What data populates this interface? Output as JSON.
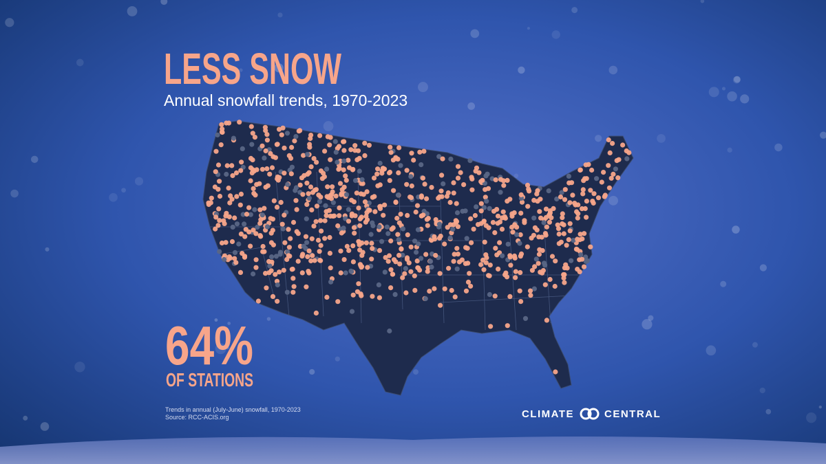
{
  "header": {
    "title": "LESS SNOW",
    "subtitle": "Annual snowfall trends, 1970-2023"
  },
  "stat": {
    "value": "64%",
    "label": "OF STATIONS"
  },
  "footnote": {
    "note": "Trends in annual (July-June) snowfall, 1970-2023",
    "source": "Source: RCC-ACIS.org"
  },
  "brand": {
    "left": "CLIMATE",
    "right": "CENTRAL"
  }
}
